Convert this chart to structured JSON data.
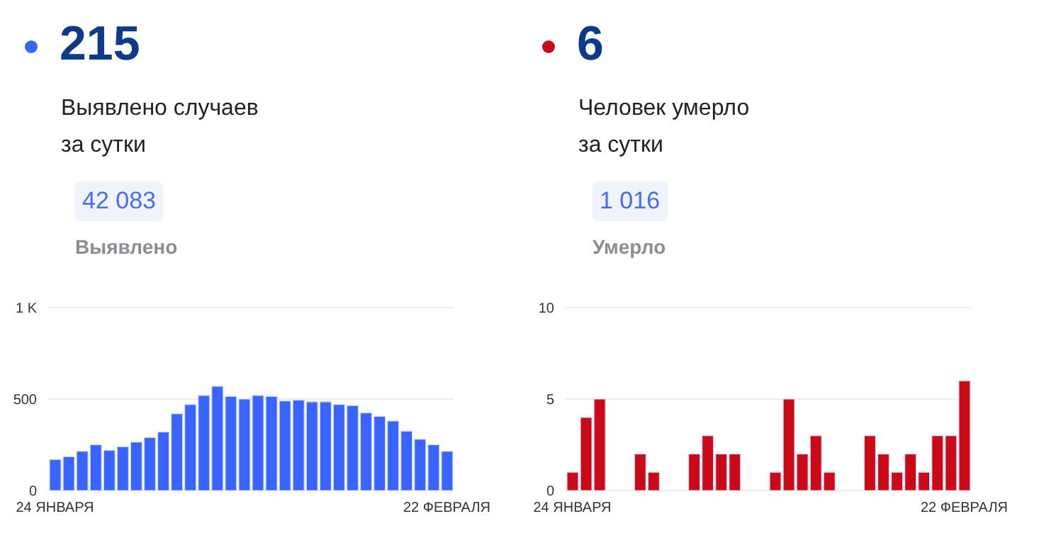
{
  "chart_data": [
    {
      "type": "bar",
      "title": "215",
      "subtitle": "Выявлено случаев\nза сутки",
      "annotations": [
        "42 083",
        "Выявлено"
      ],
      "categories": [
        "24 ЯНВАРЯ",
        null,
        null,
        null,
        null,
        null,
        null,
        null,
        null,
        null,
        null,
        null,
        null,
        null,
        null,
        null,
        null,
        null,
        null,
        null,
        null,
        null,
        null,
        null,
        null,
        null,
        null,
        null,
        null,
        "22 ФЕВРАЛЯ"
      ],
      "values": [
        170,
        185,
        215,
        250,
        220,
        240,
        265,
        290,
        320,
        420,
        470,
        520,
        570,
        515,
        500,
        520,
        515,
        490,
        495,
        485,
        485,
        470,
        465,
        425,
        405,
        380,
        325,
        280,
        250,
        215
      ],
      "color": "#3a64ff",
      "ylim": [
        0,
        1000
      ],
      "yticks": [
        0,
        500,
        {
          "value": 1000,
          "label": "1 K"
        }
      ],
      "grid": "y"
    },
    {
      "type": "bar",
      "title": "6",
      "subtitle": "Человек умерло\nза сутки",
      "annotations": [
        "1 016",
        "Умерло"
      ],
      "categories": [
        "24 ЯНВАРЯ",
        null,
        null,
        null,
        null,
        null,
        null,
        null,
        null,
        null,
        null,
        null,
        null,
        null,
        null,
        null,
        null,
        null,
        null,
        null,
        null,
        null,
        null,
        null,
        null,
        null,
        null,
        null,
        null,
        "22 ФЕВРАЛЯ"
      ],
      "values": [
        1,
        4,
        5,
        0,
        0,
        2,
        1,
        0,
        0,
        2,
        3,
        2,
        2,
        0,
        0,
        1,
        5,
        2,
        3,
        1,
        0,
        0,
        3,
        2,
        1,
        2,
        1,
        3,
        3,
        6
      ],
      "color": "#cc0a17",
      "ylim": [
        0,
        10
      ],
      "yticks": [
        0,
        5,
        10
      ],
      "grid": "y"
    }
  ]
}
